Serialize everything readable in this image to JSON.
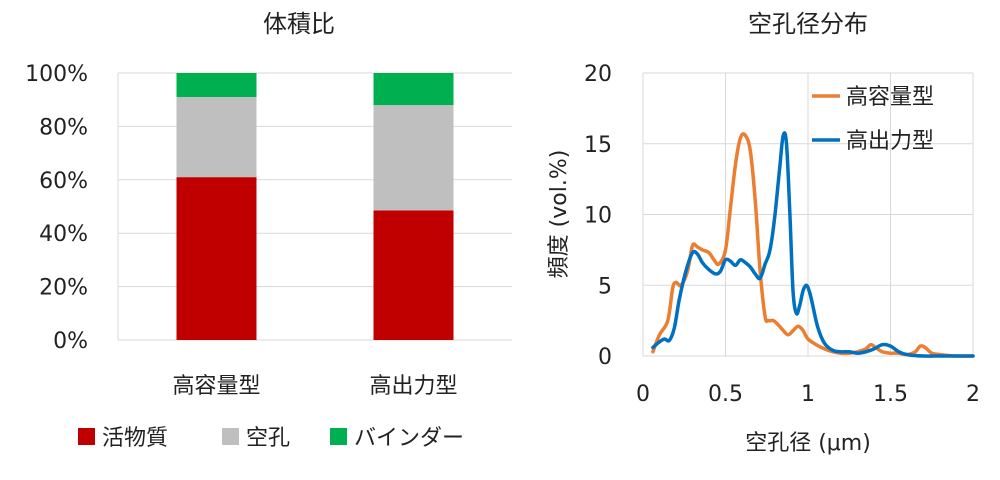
{
  "chart_data": [
    {
      "type": "bar",
      "stacked": true,
      "title": "体積比",
      "categories": [
        "高容量型",
        "高出力型"
      ],
      "series": [
        {
          "name": "活物質",
          "color": "#c00000",
          "values": [
            61,
            48.5
          ]
        },
        {
          "name": "空孔",
          "color": "#bfbfbf",
          "values": [
            30,
            39.5
          ]
        },
        {
          "name": "バインダー",
          "color": "#00b050",
          "values": [
            9,
            12
          ]
        }
      ],
      "ylim": [
        0,
        100
      ],
      "yticks": [
        "0%",
        "20%",
        "40%",
        "60%",
        "80%",
        "100%"
      ],
      "ytick_values": [
        0,
        20,
        40,
        60,
        80,
        100
      ],
      "grid": true,
      "legend_position": "bottom"
    },
    {
      "type": "line",
      "title": "空孔径分布",
      "xlabel": "空孔径 (μm)",
      "ylabel": "頻度 (vol.%)",
      "xlim": [
        0,
        2
      ],
      "ylim": [
        0,
        20
      ],
      "xticks": [
        "0",
        "0.5",
        "1",
        "1.5",
        "2"
      ],
      "xtick_values": [
        0,
        0.5,
        1,
        1.5,
        2
      ],
      "yticks": [
        "0",
        "5",
        "10",
        "15",
        "20"
      ],
      "ytick_values": [
        0,
        5,
        10,
        15,
        20
      ],
      "grid": true,
      "legend_position": "top-right",
      "series": [
        {
          "name": "高容量型",
          "color": "#ed7d31",
          "x": [
            0.06,
            0.1,
            0.15,
            0.18,
            0.2,
            0.23,
            0.27,
            0.3,
            0.33,
            0.36,
            0.4,
            0.43,
            0.46,
            0.5,
            0.53,
            0.56,
            0.59,
            0.62,
            0.65,
            0.68,
            0.71,
            0.74,
            0.76,
            0.79,
            0.82,
            0.85,
            0.88,
            0.91,
            0.94,
            0.97,
            1.0,
            1.05,
            1.1,
            1.15,
            1.2,
            1.25,
            1.3,
            1.35,
            1.38,
            1.41,
            1.45,
            1.5,
            1.55,
            1.6,
            1.65,
            1.68,
            1.71,
            1.75,
            1.8,
            1.9,
            2.0
          ],
          "values": [
            0.3,
            1.5,
            2.5,
            4.8,
            5.2,
            5.0,
            6.0,
            7.8,
            7.7,
            7.5,
            7.3,
            6.8,
            6.5,
            7.5,
            10.5,
            13.5,
            15.4,
            15.6,
            14.5,
            11.0,
            6.0,
            2.8,
            2.5,
            2.5,
            2.2,
            1.8,
            1.5,
            1.8,
            2.1,
            1.8,
            1.2,
            0.8,
            0.5,
            0.3,
            0.2,
            0.2,
            0.3,
            0.5,
            0.8,
            0.6,
            0.3,
            0.2,
            0.2,
            0.1,
            0.3,
            0.7,
            0.6,
            0.2,
            0.1,
            0.0,
            0.0
          ]
        },
        {
          "name": "高出力型",
          "color": "#0070c0",
          "x": [
            0.06,
            0.1,
            0.13,
            0.16,
            0.19,
            0.22,
            0.26,
            0.3,
            0.33,
            0.36,
            0.4,
            0.44,
            0.47,
            0.5,
            0.53,
            0.56,
            0.59,
            0.62,
            0.65,
            0.68,
            0.71,
            0.74,
            0.77,
            0.8,
            0.83,
            0.85,
            0.87,
            0.89,
            0.91,
            0.93,
            0.95,
            0.97,
            0.99,
            1.01,
            1.03,
            1.06,
            1.1,
            1.15,
            1.2,
            1.25,
            1.3,
            1.35,
            1.4,
            1.45,
            1.5,
            1.55,
            1.6,
            1.7,
            1.8,
            1.9,
            2.0
          ],
          "values": [
            0.6,
            1.0,
            1.2,
            1.1,
            2.0,
            4.0,
            6.0,
            7.3,
            7.2,
            6.6,
            6.1,
            5.8,
            6.0,
            6.8,
            6.7,
            6.4,
            6.8,
            6.6,
            6.3,
            5.8,
            5.5,
            6.5,
            7.5,
            10.0,
            13.5,
            15.6,
            15.0,
            10.0,
            4.5,
            3.0,
            3.6,
            4.6,
            5.0,
            4.5,
            3.5,
            2.0,
            0.9,
            0.4,
            0.3,
            0.3,
            0.2,
            0.3,
            0.5,
            0.8,
            0.7,
            0.3,
            0.1,
            0.0,
            0.0,
            0.0,
            0.0
          ]
        }
      ]
    }
  ]
}
